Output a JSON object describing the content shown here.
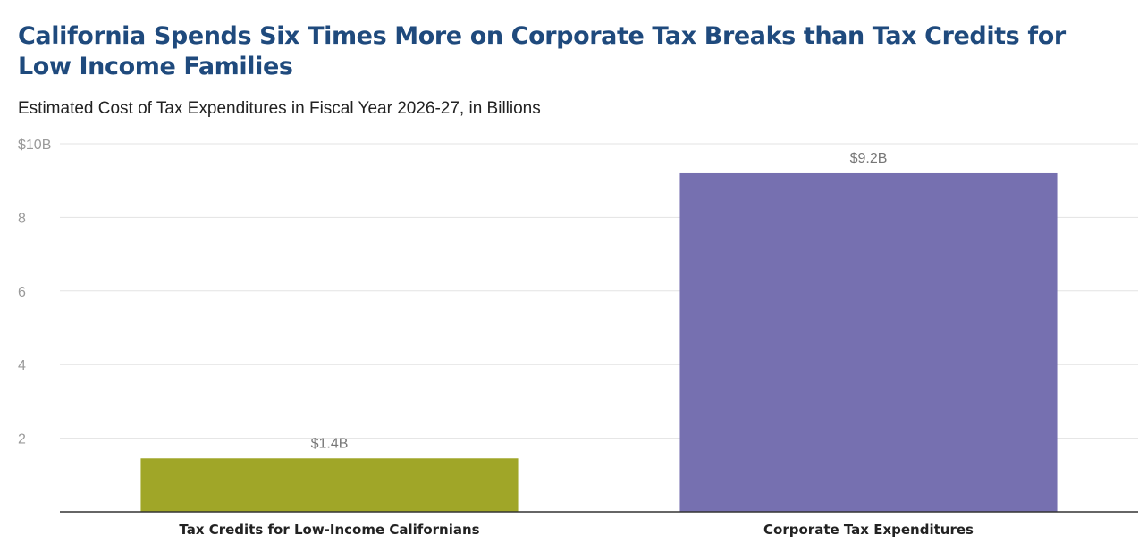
{
  "colors": {
    "title": "#1f4a7d",
    "grid": "#e3e3e3",
    "axis": "#333333"
  },
  "chart_data": {
    "type": "bar",
    "title": "California Spends Six Times More on Corporate Tax Breaks than Tax Credits for Low Income Families",
    "subtitle": "Estimated Cost of Tax Expenditures in Fiscal Year 2026-27, in Billions",
    "categories": [
      "Tax Credits for Low-Income Californians",
      "Corporate Tax Expenditures"
    ],
    "values": [
      1.45,
      9.2
    ],
    "data_labels": [
      "$1.4B",
      "$9.2B"
    ],
    "bar_colors": [
      "#a0a628",
      "#7670b0"
    ],
    "ylim": [
      0,
      10
    ],
    "yticks": [
      2,
      4,
      6,
      8,
      10
    ],
    "ytick_labels": [
      "2",
      "4",
      "6",
      "8",
      "$10B"
    ],
    "grid": true
  }
}
